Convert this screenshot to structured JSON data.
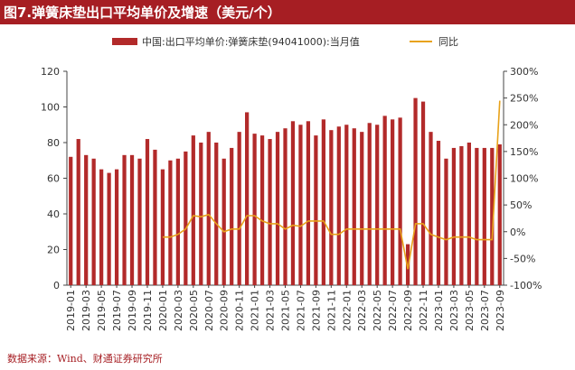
{
  "figure": {
    "title": "图7.弹簧床垫出口平均单价及增速（美元/个）",
    "source": "数据来源：Wind、财通证券研究所"
  },
  "colors": {
    "bar": "#b22a2a",
    "line": "#e8a21a",
    "title_bg": "#a61e23"
  },
  "chart_data": {
    "type": "bar+line",
    "title": "图7.弹簧床垫出口平均单价及增速（美元/个）",
    "legend": [
      "中国:出口平均单价:弹簧床垫(94041000):当月值",
      "同比"
    ],
    "categories": [
      "2019-01",
      "2019-02",
      "2019-03",
      "2019-04",
      "2019-05",
      "2019-06",
      "2019-07",
      "2019-08",
      "2019-09",
      "2019-10",
      "2019-11",
      "2019-12",
      "2020-01",
      "2020-02",
      "2020-03",
      "2020-04",
      "2020-05",
      "2020-06",
      "2020-07",
      "2020-08",
      "2020-09",
      "2020-10",
      "2020-11",
      "2020-12",
      "2021-01",
      "2021-02",
      "2021-03",
      "2021-04",
      "2021-05",
      "2021-06",
      "2021-07",
      "2021-08",
      "2021-09",
      "2021-10",
      "2021-11",
      "2021-12",
      "2022-01",
      "2022-02",
      "2022-03",
      "2022-04",
      "2022-05",
      "2022-06",
      "2022-07",
      "2022-08",
      "2022-09",
      "2022-10",
      "2022-11",
      "2022-12",
      "2023-01",
      "2023-02",
      "2023-03",
      "2023-04",
      "2023-05",
      "2023-06",
      "2023-07",
      "2023-08",
      "2023-09"
    ],
    "xtick_labels": [
      "2019-01",
      "2019-03",
      "2019-05",
      "2019-07",
      "2019-09",
      "2019-11",
      "2020-01",
      "2020-03",
      "2020-05",
      "2020-07",
      "2020-09",
      "2020-11",
      "2021-01",
      "2021-03",
      "2021-05",
      "2021-07",
      "2021-09",
      "2021-11",
      "2022-01",
      "2022-03",
      "2022-05",
      "2022-07",
      "2022-09",
      "2022-11",
      "2023-01",
      "2023-03",
      "2023-05",
      "2023-07",
      "2023-09"
    ],
    "series": [
      {
        "name": "中国:出口平均单价:弹簧床垫(94041000):当月值",
        "type": "bar",
        "axis": "left",
        "values": [
          72,
          82,
          73,
          71,
          65,
          63,
          65,
          73,
          73,
          71,
          82,
          76,
          65,
          70,
          71,
          75,
          84,
          80,
          86,
          80,
          71,
          77,
          86,
          97,
          85,
          84,
          82,
          86,
          88,
          92,
          90,
          92,
          84,
          93,
          87,
          89,
          90,
          88,
          86,
          91,
          90,
          95,
          93,
          94,
          23,
          105,
          103,
          86,
          81,
          71,
          77,
          78,
          80,
          77,
          77,
          77,
          79
        ]
      },
      {
        "name": "同比",
        "type": "line",
        "axis": "right",
        "values": [
          null,
          null,
          null,
          null,
          null,
          null,
          null,
          null,
          null,
          null,
          null,
          null,
          -10,
          -10,
          -5,
          5,
          30,
          28,
          32,
          15,
          0,
          5,
          5,
          30,
          30,
          20,
          15,
          15,
          5,
          12,
          10,
          20,
          20,
          20,
          -5,
          -5,
          5,
          5,
          5,
          5,
          5,
          5,
          5,
          5,
          -70,
          15,
          15,
          -5,
          -10,
          -15,
          -10,
          -10,
          -10,
          -15,
          -15,
          -15,
          245
        ]
      }
    ],
    "ylim_left": [
      0,
      120
    ],
    "yticks_left": [
      0,
      20,
      40,
      60,
      80,
      100,
      120
    ],
    "ylim_right": [
      -100,
      300
    ],
    "yticks_right": [
      "-100%",
      "-50%",
      "0%",
      "50%",
      "100%",
      "150%",
      "200%",
      "250%",
      "300%"
    ],
    "legend_position": "top"
  }
}
